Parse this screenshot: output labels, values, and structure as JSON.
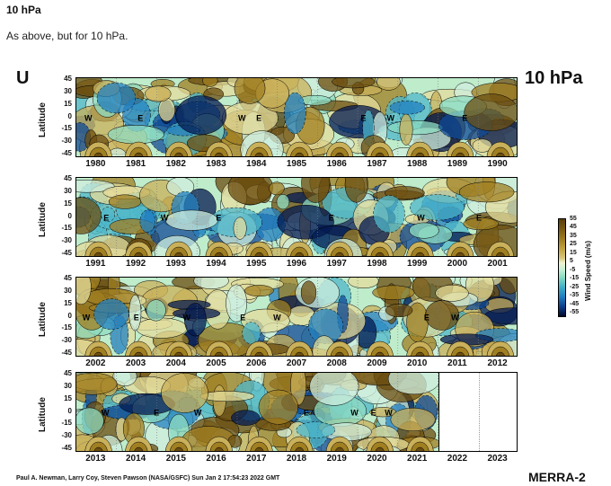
{
  "header": {
    "title": "10 hPa",
    "caption": "As above, but for 10 hPa."
  },
  "figure": {
    "variable": "U",
    "level": "10 hPa",
    "y_axis_label": "Latitude",
    "lat_ticks": [
      "45",
      "30",
      "15",
      "0",
      "-15",
      "-30",
      "-45"
    ],
    "panels": [
      {
        "years": [
          "1980",
          "1981",
          "1982",
          "1983",
          "1984",
          "1985",
          "1986",
          "1987",
          "1988",
          "1989",
          "1990"
        ],
        "labels": [
          {
            "t": "W",
            "y": 0.8
          },
          {
            "t": "E",
            "y": 6.1
          },
          {
            "t": "W",
            "y": 16.1
          },
          {
            "t": "E",
            "y": 17.9
          },
          {
            "t": "E",
            "y": 28.3
          },
          {
            "t": "W",
            "y": 30.9
          },
          {
            "t": "E",
            "y": 38.4
          }
        ]
      },
      {
        "years": [
          "1991",
          "1992",
          "1993",
          "1994",
          "1995",
          "1996",
          "1997",
          "1998",
          "1999",
          "2000",
          "2001"
        ],
        "labels": [
          {
            "t": "E",
            "y": 2.7
          },
          {
            "t": "W",
            "y": 8.4
          },
          {
            "t": "E",
            "y": 13.9
          },
          {
            "t": "E",
            "y": 25.1
          },
          {
            "t": "W",
            "y": 33.9
          },
          {
            "t": "E",
            "y": 39.8
          }
        ]
      },
      {
        "years": [
          "2002",
          "2003",
          "2004",
          "2005",
          "2006",
          "2007",
          "2008",
          "2009",
          "2010",
          "2011",
          "2012"
        ],
        "labels": [
          {
            "t": "W",
            "y": 0.6
          },
          {
            "t": "E",
            "y": 5.7
          },
          {
            "t": "W",
            "y": 10.6
          },
          {
            "t": "E",
            "y": 16.3
          },
          {
            "t": "W",
            "y": 19.6
          },
          {
            "t": "E",
            "y": 34.6
          },
          {
            "t": "W",
            "y": 37.3
          }
        ]
      },
      {
        "years": [
          "2013",
          "2014",
          "2015",
          "2016",
          "2017",
          "2018",
          "2019",
          "2020",
          "2021",
          "2022",
          "2023"
        ],
        "labels": [
          {
            "t": "W",
            "y": 2.5
          },
          {
            "t": "E",
            "y": 7.7
          },
          {
            "t": "W",
            "y": 11.7
          },
          {
            "t": "E",
            "y": 22.6
          },
          {
            "t": "W",
            "y": 27.3
          },
          {
            "t": "E",
            "y": 29.3
          },
          {
            "t": "W",
            "y": 30.7
          }
        ]
      }
    ],
    "colorbar": {
      "title": "Wind Speed (m/s)",
      "ticks": [
        "55",
        "45",
        "35",
        "25",
        "15",
        "5",
        "-5",
        "-15",
        "-25",
        "-35",
        "-45",
        "-55"
      ]
    },
    "credit": "Paul A. Newman, Larry Coy, Steven Pawson (NASA/GSFC) Sun Jan  2 17:54:23 2022 GMT",
    "dataset": "MERRA-2"
  }
}
